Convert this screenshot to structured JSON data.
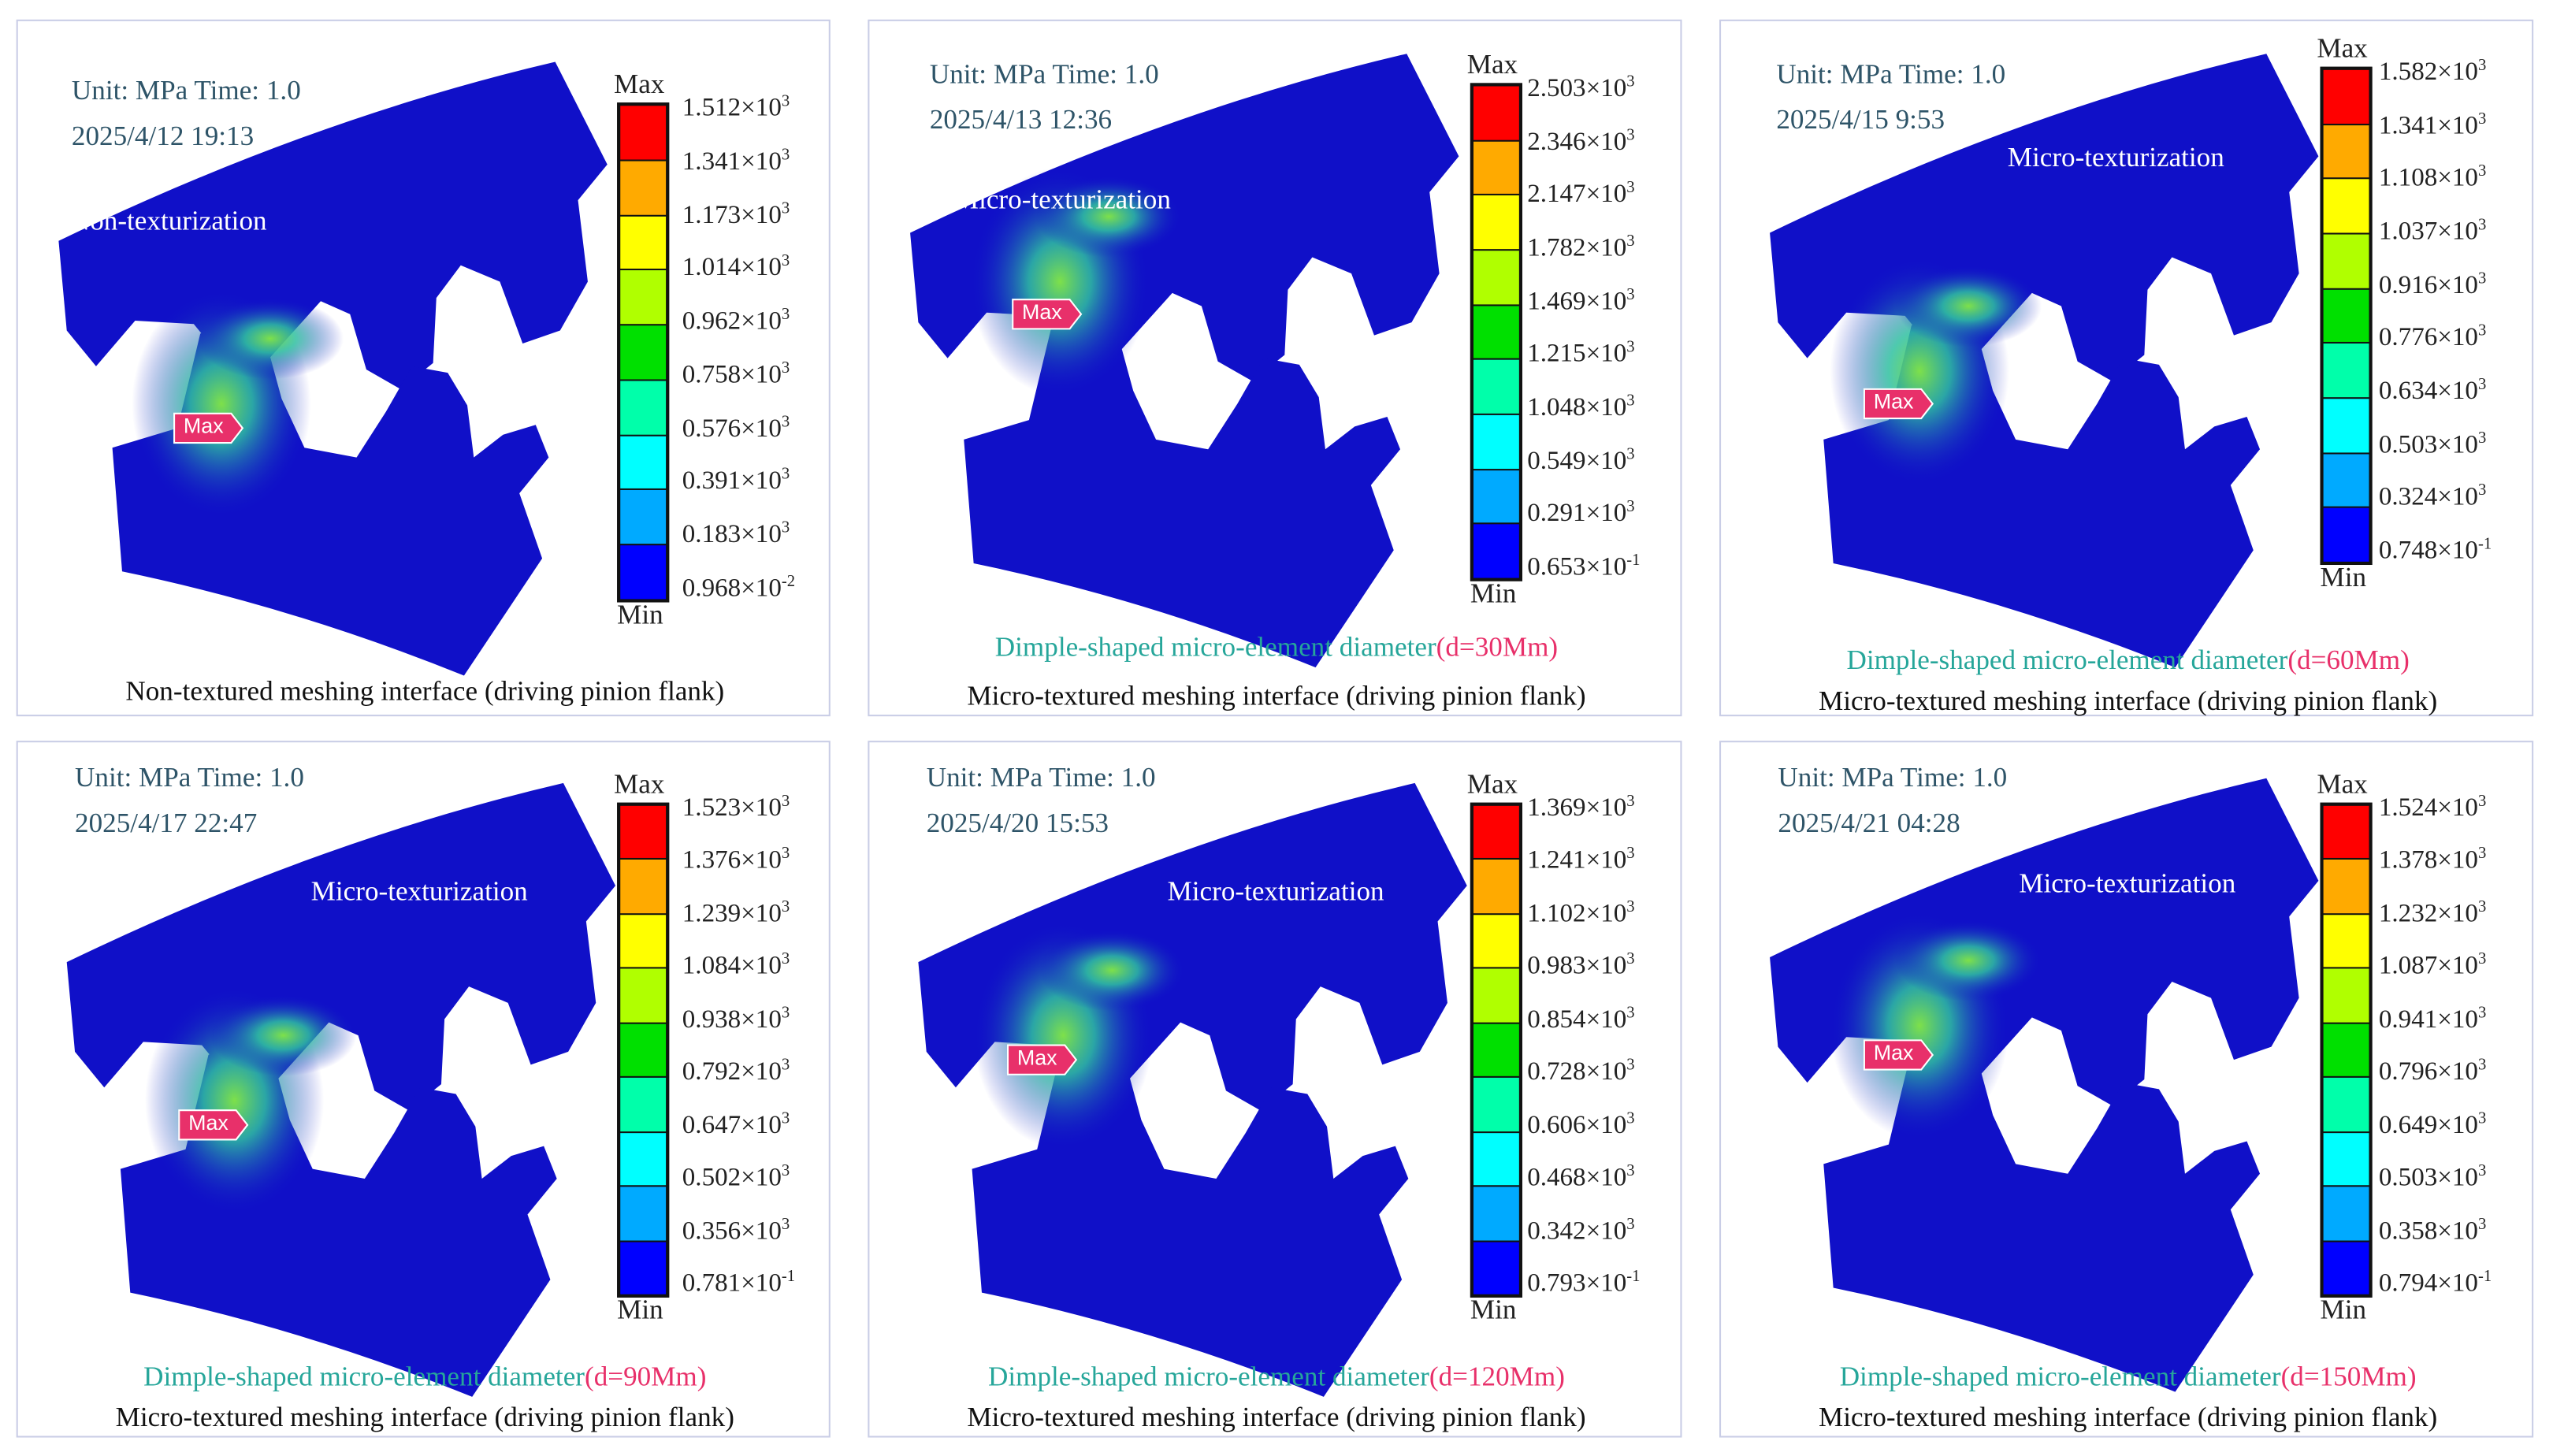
{
  "colors": {
    "gear": "#1010c8",
    "bands": [
      "#ff0000",
      "#ffaa00",
      "#ffff00",
      "#b0ff00",
      "#00e000",
      "#00ffaa",
      "#00ffff",
      "#00aaff",
      "#0000ff"
    ],
    "marker": "#e8306a",
    "dimple_text": "#26a69a",
    "dimple_value": "#e8306a"
  },
  "panels": [
    {
      "unit": "Unit: MPa  Time: 1.0",
      "date": "2025/4/12 19:13",
      "tag": "Non-texturization",
      "max_marker": "Max",
      "legend": {
        "max": "Max",
        "min": "Min",
        "labels": [
          {
            "v": "1.512×10",
            "e": "3"
          },
          {
            "v": "1.341×10",
            "e": "3"
          },
          {
            "v": "1.173×10",
            "e": "3"
          },
          {
            "v": "1.014×10",
            "e": "3"
          },
          {
            "v": "0.962×10",
            "e": "3"
          },
          {
            "v": "0.758×10",
            "e": "3"
          },
          {
            "v": "0.576×10",
            "e": "3"
          },
          {
            "v": "0.391×10",
            "e": "3"
          },
          {
            "v": "0.183×10",
            "e": "3"
          },
          {
            "v": "0.968×10",
            "e": "-2"
          }
        ]
      },
      "dimple": null,
      "dimple_value": null,
      "caption": "Non-textured meshing interface (driving pinion flank)"
    },
    {
      "unit": "Unit: MPa  Time: 1.0",
      "date": "2025/4/13 12:36",
      "tag": "Micro-texturization",
      "max_marker": "Max",
      "legend": {
        "max": "Max",
        "min": "Min",
        "labels": [
          {
            "v": "2.503×10",
            "e": "3"
          },
          {
            "v": "2.346×10",
            "e": "3"
          },
          {
            "v": "2.147×10",
            "e": "3"
          },
          {
            "v": "1.782×10",
            "e": "3"
          },
          {
            "v": "1.469×10",
            "e": "3"
          },
          {
            "v": "1.215×10",
            "e": "3"
          },
          {
            "v": "1.048×10",
            "e": "3"
          },
          {
            "v": "0.549×10",
            "e": "3"
          },
          {
            "v": "0.291×10",
            "e": "3"
          },
          {
            "v": "0.653×10",
            "e": "-1"
          }
        ]
      },
      "dimple": "Dimple-shaped micro-element diameter",
      "dimple_value": "(d=30Mm)",
      "caption": "Micro-textured meshing interface (driving pinion flank)"
    },
    {
      "unit": "Unit: MPa  Time: 1.0",
      "date": "2025/4/15 9:53",
      "tag": "Micro-texturization",
      "max_marker": "Max",
      "legend": {
        "max": "Max",
        "min": "Min",
        "labels": [
          {
            "v": "1.582×10",
            "e": "3"
          },
          {
            "v": "1.341×10",
            "e": "3"
          },
          {
            "v": "1.108×10",
            "e": "3"
          },
          {
            "v": "1.037×10",
            "e": "3"
          },
          {
            "v": "0.916×10",
            "e": "3"
          },
          {
            "v": "0.776×10",
            "e": "3"
          },
          {
            "v": "0.634×10",
            "e": "3"
          },
          {
            "v": "0.503×10",
            "e": "3"
          },
          {
            "v": "0.324×10",
            "e": "3"
          },
          {
            "v": "0.748×10",
            "e": "-1"
          }
        ]
      },
      "dimple": "Dimple-shaped micro-element diameter",
      "dimple_value": "(d=60Mm)",
      "caption": "Micro-textured meshing interface (driving pinion flank)"
    },
    {
      "unit": "Unit: MPa  Time: 1.0",
      "date": "2025/4/17 22:47",
      "tag": "Micro-texturization",
      "max_marker": "Max",
      "legend": {
        "max": "Max",
        "min": "Min",
        "labels": [
          {
            "v": "1.523×10",
            "e": "3"
          },
          {
            "v": "1.376×10",
            "e": "3"
          },
          {
            "v": "1.239×10",
            "e": "3"
          },
          {
            "v": "1.084×10",
            "e": "3"
          },
          {
            "v": "0.938×10",
            "e": "3"
          },
          {
            "v": "0.792×10",
            "e": "3"
          },
          {
            "v": "0.647×10",
            "e": "3"
          },
          {
            "v": "0.502×10",
            "e": "3"
          },
          {
            "v": "0.356×10",
            "e": "3"
          },
          {
            "v": "0.781×10",
            "e": "-1"
          }
        ]
      },
      "dimple": "Dimple-shaped micro-element diameter",
      "dimple_value": "(d=90Mm)",
      "caption": "Micro-textured meshing interface (driving pinion flank)"
    },
    {
      "unit": "Unit: MPa  Time: 1.0",
      "date": "2025/4/20 15:53",
      "tag": "Micro-texturization",
      "max_marker": "Max",
      "legend": {
        "max": "Max",
        "min": "Min",
        "labels": [
          {
            "v": "1.369×10",
            "e": "3"
          },
          {
            "v": "1.241×10",
            "e": "3"
          },
          {
            "v": "1.102×10",
            "e": "3"
          },
          {
            "v": "0.983×10",
            "e": "3"
          },
          {
            "v": "0.854×10",
            "e": "3"
          },
          {
            "v": "0.728×10",
            "e": "3"
          },
          {
            "v": "0.606×10",
            "e": "3"
          },
          {
            "v": "0.468×10",
            "e": "3"
          },
          {
            "v": "0.342×10",
            "e": "3"
          },
          {
            "v": "0.793×10",
            "e": "-1"
          }
        ]
      },
      "dimple": "Dimple-shaped micro-element diameter",
      "dimple_value": "(d=120Mm)",
      "caption": "Micro-textured meshing interface (driving pinion flank)"
    },
    {
      "unit": "Unit: MPa  Time: 1.0",
      "date": "2025/4/21 04:28",
      "tag": "Micro-texturization",
      "max_marker": "Max",
      "legend": {
        "max": "Max",
        "min": "Min",
        "labels": [
          {
            "v": "1.524×10",
            "e": "3"
          },
          {
            "v": "1.378×10",
            "e": "3"
          },
          {
            "v": "1.232×10",
            "e": "3"
          },
          {
            "v": "1.087×10",
            "e": "3"
          },
          {
            "v": "0.941×10",
            "e": "3"
          },
          {
            "v": "0.796×10",
            "e": "3"
          },
          {
            "v": "0.649×10",
            "e": "3"
          },
          {
            "v": "0.503×10",
            "e": "3"
          },
          {
            "v": "0.358×10",
            "e": "3"
          },
          {
            "v": "0.794×10",
            "e": "-1"
          }
        ]
      },
      "dimple": "Dimple-shaped micro-element diameter",
      "dimple_value": "(d=150Mm)",
      "caption": "Micro-textured meshing interface (driving pinion flank)"
    }
  ]
}
